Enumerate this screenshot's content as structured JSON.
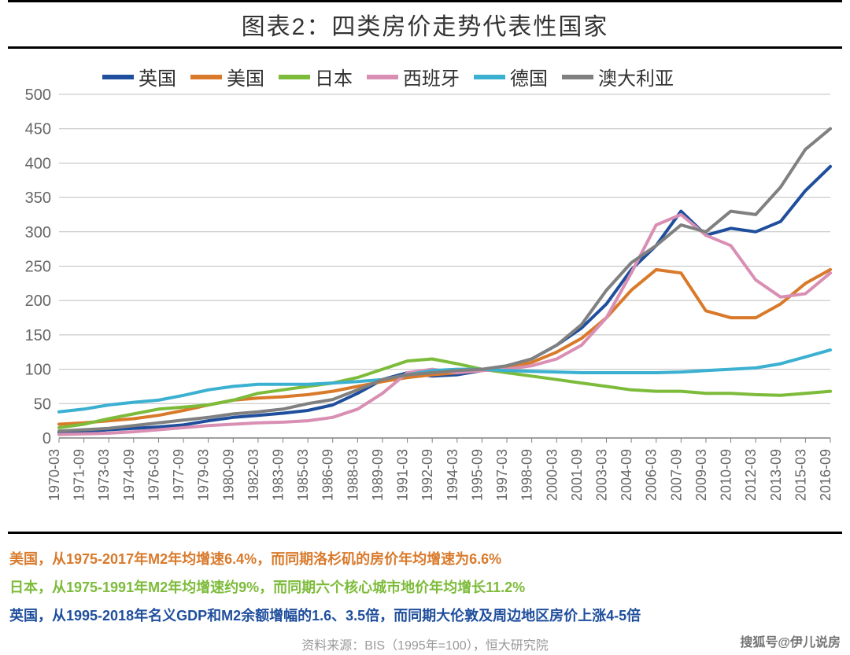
{
  "title": "图表2：四类房价走势代表性国家",
  "chart": {
    "type": "line",
    "background_color": "#ffffff",
    "grid_color": "#bfbfbf",
    "axis_color": "#808080",
    "axis_tick_color": "#808080",
    "ylim": [
      0,
      500
    ],
    "ytick_step": 50,
    "yticks": [
      0,
      50,
      100,
      150,
      200,
      250,
      300,
      350,
      400,
      450,
      500
    ],
    "ylabel_fontsize": 20,
    "ylabel_color": "#666666",
    "xlabels": [
      "1970-03",
      "1971-09",
      "1973-03",
      "1974-09",
      "1976-03",
      "1977-09",
      "1979-03",
      "1980-09",
      "1982-03",
      "1983-09",
      "1985-03",
      "1986-09",
      "1988-03",
      "1989-09",
      "1991-03",
      "1992-09",
      "1994-03",
      "1995-09",
      "1997-03",
      "1998-09",
      "2000-03",
      "2001-09",
      "2003-03",
      "2004-09",
      "2006-03",
      "2007-09",
      "2009-03",
      "2010-09",
      "2012-03",
      "2013-09",
      "2015-03",
      "2016-09"
    ],
    "xlabel_fontsize": 18,
    "xlabel_color": "#666666",
    "xlabel_rotation": -90,
    "line_width": 4,
    "legend_fontsize": 24,
    "series": [
      {
        "name": "英国",
        "color": "#1f4e9c",
        "values": [
          8,
          9,
          12,
          14,
          16,
          19,
          25,
          30,
          33,
          36,
          40,
          48,
          65,
          85,
          95,
          90,
          92,
          98,
          105,
          115,
          135,
          160,
          195,
          245,
          280,
          330,
          295,
          305,
          300,
          315,
          360,
          395
        ]
      },
      {
        "name": "美国",
        "color": "#d97a2b",
        "values": [
          20,
          22,
          25,
          28,
          33,
          40,
          48,
          55,
          58,
          60,
          63,
          68,
          75,
          82,
          88,
          92,
          95,
          98,
          102,
          110,
          125,
          145,
          175,
          215,
          245,
          240,
          185,
          175,
          175,
          195,
          225,
          245
        ]
      },
      {
        "name": "日本",
        "color": "#7dbb3a",
        "values": [
          15,
          20,
          28,
          35,
          42,
          45,
          48,
          55,
          65,
          70,
          75,
          80,
          88,
          100,
          112,
          115,
          108,
          100,
          95,
          90,
          85,
          80,
          75,
          70,
          68,
          68,
          65,
          65,
          63,
          62,
          65,
          68
        ]
      },
      {
        "name": "西班牙",
        "color": "#d98fb3",
        "values": [
          5,
          6,
          7,
          9,
          12,
          15,
          18,
          20,
          22,
          23,
          25,
          30,
          42,
          65,
          95,
          100,
          95,
          98,
          100,
          105,
          115,
          135,
          175,
          240,
          310,
          325,
          295,
          280,
          230,
          205,
          210,
          240
        ]
      },
      {
        "name": "德国",
        "color": "#3bb0d1",
        "values": [
          38,
          42,
          48,
          52,
          55,
          62,
          70,
          75,
          78,
          78,
          78,
          80,
          82,
          85,
          92,
          98,
          100,
          100,
          98,
          97,
          96,
          95,
          95,
          95,
          95,
          96,
          98,
          100,
          102,
          108,
          118,
          128
        ]
      },
      {
        "name": "澳大利亚",
        "color": "#808080",
        "values": [
          10,
          12,
          14,
          18,
          22,
          26,
          30,
          35,
          38,
          42,
          50,
          56,
          70,
          85,
          92,
          95,
          98,
          100,
          105,
          115,
          135,
          165,
          215,
          255,
          280,
          310,
          300,
          330,
          325,
          365,
          420,
          450
        ]
      }
    ]
  },
  "notes": [
    {
      "text": "美国，从1975-2017年M2年均增速6.4%，而同期洛杉矶的房价年均增速为6.6%",
      "color": "#d97a2b"
    },
    {
      "text": "日本，从1975-1991年M2年均增速约9%，而同期六个核心城市地价年均增长11.2%",
      "color": "#7dbb3a"
    },
    {
      "text": "英国，从1995-2018年名义GDP和M2余额增幅的1.6、3.5倍，而同期大伦敦及周边地区房价上涨4-5倍",
      "color": "#1f4e9c"
    }
  ],
  "source": "资料来源：BIS（1995年=100），恒大研究院",
  "watermark": "搜狐号@伊儿说房"
}
